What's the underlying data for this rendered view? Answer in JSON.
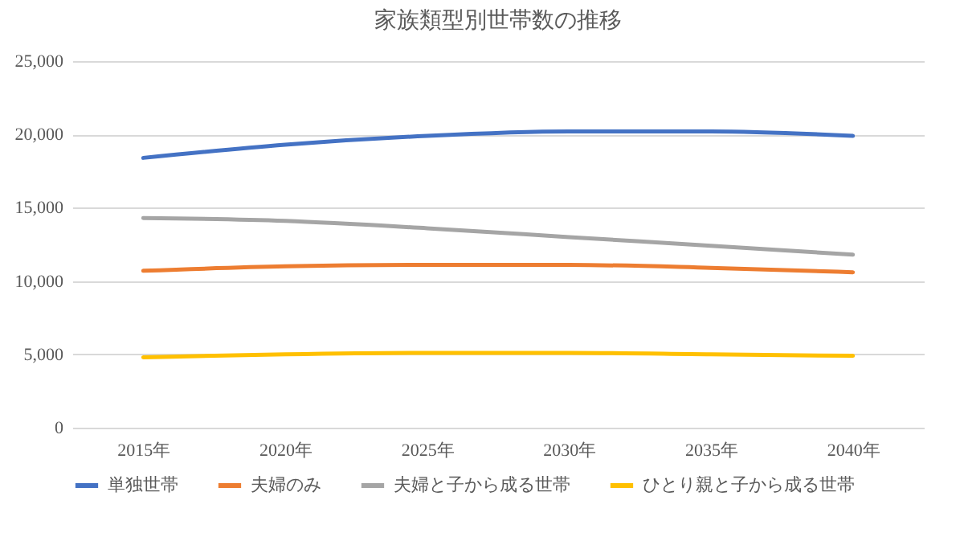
{
  "chart_data": {
    "type": "line",
    "title": "家族類型別世帯数の推移",
    "categories": [
      "2015年",
      "2020年",
      "2025年",
      "2030年",
      "2035年",
      "2040年"
    ],
    "series": [
      {
        "name": "単独世帯",
        "color": "#4472c4",
        "values": [
          18400,
          19300,
          19900,
          20200,
          20200,
          19900
        ]
      },
      {
        "name": "夫婦のみ",
        "color": "#ed7d31",
        "values": [
          10700,
          11000,
          11100,
          11100,
          10900,
          10600
        ]
      },
      {
        "name": "夫婦と子から成る世帯",
        "color": "#a5a5a5",
        "values": [
          14300,
          14100,
          13600,
          13000,
          12400,
          11800
        ]
      },
      {
        "name": "ひとり親と子から成る世帯",
        "color": "#ffc000",
        "values": [
          4800,
          5000,
          5100,
          5100,
          5000,
          4900
        ]
      }
    ],
    "ylim": [
      0,
      25000
    ],
    "yticks": [
      0,
      {
        "value": 5000,
        "label": "5,000"
      },
      {
        "value": 10000,
        "label": "10,000"
      },
      {
        "value": 15000,
        "label": "15,000"
      },
      {
        "value": 20000,
        "label": "20,000"
      },
      {
        "value": 25000,
        "label": "25,000"
      }
    ],
    "grid": "y",
    "legend": "bottom",
    "marker": "none",
    "line_style": "solid"
  }
}
